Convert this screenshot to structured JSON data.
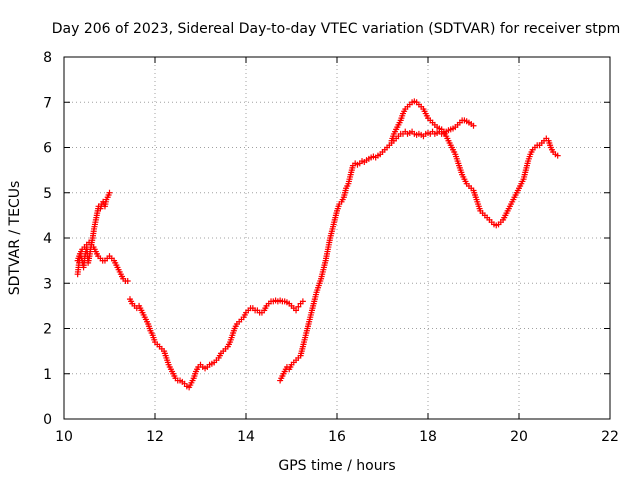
{
  "chart_data": {
    "type": "scatter",
    "title": "Day 206 of 2023, Sidereal Day-to-day VTEC variation (SDTVAR) for receiver stpm",
    "xlabel": "GPS time / hours",
    "ylabel": "SDTVAR / TECUs",
    "xlim": [
      10,
      22
    ],
    "ylim": [
      0,
      8
    ],
    "xticks": [
      "10",
      "12",
      "14",
      "16",
      "18",
      "20",
      "22"
    ],
    "yticks": [
      "0",
      "1",
      "2",
      "3",
      "4",
      "5",
      "6",
      "7",
      "8"
    ],
    "grid": true,
    "marker": "plus",
    "color": "#ff0000",
    "segments": [
      [
        [
          10.3,
          3.2
        ],
        [
          10.33,
          3.45
        ],
        [
          10.36,
          3.65
        ],
        [
          10.4,
          3.5
        ],
        [
          10.43,
          3.35
        ],
        [
          10.46,
          3.6
        ],
        [
          10.5,
          3.8
        ],
        [
          10.53,
          3.45
        ],
        [
          10.56,
          3.6
        ],
        [
          10.6,
          3.85
        ],
        [
          10.63,
          4.0
        ],
        [
          10.66,
          4.2
        ],
        [
          10.7,
          4.4
        ],
        [
          10.73,
          4.55
        ],
        [
          10.76,
          4.7
        ],
        [
          10.8,
          4.65
        ],
        [
          10.83,
          4.75
        ],
        [
          10.86,
          4.8
        ],
        [
          10.9,
          4.7
        ],
        [
          10.93,
          4.85
        ],
        [
          10.96,
          4.9
        ],
        [
          11.0,
          5.0
        ]
      ],
      [
        [
          10.3,
          3.5
        ],
        [
          10.35,
          3.65
        ],
        [
          10.4,
          3.75
        ],
        [
          10.45,
          3.8
        ],
        [
          10.5,
          3.85
        ],
        [
          10.55,
          3.9
        ],
        [
          10.6,
          3.85
        ],
        [
          10.65,
          3.8
        ],
        [
          10.7,
          3.7
        ],
        [
          10.75,
          3.6
        ],
        [
          10.8,
          3.55
        ],
        [
          10.85,
          3.5
        ],
        [
          10.9,
          3.5
        ],
        [
          10.95,
          3.55
        ],
        [
          11.0,
          3.6
        ],
        [
          11.05,
          3.55
        ],
        [
          11.1,
          3.5
        ],
        [
          11.15,
          3.4
        ],
        [
          11.2,
          3.3
        ],
        [
          11.25,
          3.2
        ],
        [
          11.3,
          3.1
        ],
        [
          11.35,
          3.05
        ],
        [
          11.4,
          3.05
        ]
      ],
      [
        [
          11.45,
          2.65
        ],
        [
          11.5,
          2.55
        ],
        [
          11.55,
          2.5
        ],
        [
          11.6,
          2.45
        ],
        [
          11.65,
          2.5
        ],
        [
          11.7,
          2.4
        ],
        [
          11.75,
          2.3
        ],
        [
          11.8,
          2.2
        ],
        [
          11.85,
          2.1
        ],
        [
          11.9,
          1.95
        ],
        [
          11.95,
          1.85
        ],
        [
          12.0,
          1.7
        ],
        [
          12.05,
          1.65
        ],
        [
          12.1,
          1.6
        ],
        [
          12.15,
          1.55
        ],
        [
          12.2,
          1.5
        ],
        [
          12.25,
          1.35
        ],
        [
          12.3,
          1.2
        ],
        [
          12.35,
          1.1
        ],
        [
          12.4,
          1.0
        ],
        [
          12.45,
          0.9
        ],
        [
          12.5,
          0.85
        ],
        [
          12.55,
          0.85
        ],
        [
          12.6,
          0.82
        ],
        [
          12.65,
          0.78
        ],
        [
          12.7,
          0.72
        ],
        [
          12.75,
          0.7
        ],
        [
          12.8,
          0.8
        ],
        [
          12.85,
          0.9
        ],
        [
          12.9,
          1.05
        ],
        [
          12.95,
          1.15
        ],
        [
          13.0,
          1.2
        ],
        [
          13.05,
          1.15
        ],
        [
          13.1,
          1.12
        ],
        [
          13.15,
          1.15
        ],
        [
          13.2,
          1.2
        ],
        [
          13.25,
          1.22
        ],
        [
          13.3,
          1.25
        ],
        [
          13.35,
          1.3
        ],
        [
          13.4,
          1.35
        ],
        [
          13.45,
          1.45
        ],
        [
          13.5,
          1.5
        ],
        [
          13.55,
          1.55
        ],
        [
          13.6,
          1.6
        ],
        [
          13.65,
          1.7
        ],
        [
          13.7,
          1.85
        ],
        [
          13.75,
          2.0
        ],
        [
          13.8,
          2.1
        ],
        [
          13.85,
          2.15
        ],
        [
          13.9,
          2.2
        ],
        [
          13.95,
          2.25
        ],
        [
          14.0,
          2.35
        ],
        [
          14.05,
          2.4
        ],
        [
          14.1,
          2.45
        ],
        [
          14.15,
          2.45
        ],
        [
          14.2,
          2.4
        ],
        [
          14.25,
          2.4
        ],
        [
          14.3,
          2.35
        ],
        [
          14.35,
          2.35
        ],
        [
          14.4,
          2.4
        ],
        [
          14.45,
          2.5
        ],
        [
          14.5,
          2.55
        ],
        [
          14.55,
          2.6
        ],
        [
          14.6,
          2.6
        ],
        [
          14.65,
          2.62
        ],
        [
          14.7,
          2.6
        ],
        [
          14.75,
          2.62
        ],
        [
          14.8,
          2.6
        ],
        [
          14.85,
          2.6
        ],
        [
          14.9,
          2.58
        ],
        [
          14.95,
          2.55
        ],
        [
          15.0,
          2.5
        ],
        [
          15.05,
          2.45
        ],
        [
          15.1,
          2.4
        ],
        [
          15.15,
          2.48
        ],
        [
          15.2,
          2.55
        ],
        [
          15.25,
          2.6
        ]
      ],
      [
        [
          14.75,
          0.85
        ],
        [
          14.8,
          0.95
        ],
        [
          14.85,
          1.05
        ],
        [
          14.9,
          1.15
        ],
        [
          14.95,
          1.1
        ],
        [
          15.0,
          1.2
        ],
        [
          15.05,
          1.25
        ],
        [
          15.1,
          1.3
        ],
        [
          15.15,
          1.35
        ],
        [
          15.2,
          1.4
        ],
        [
          15.25,
          1.6
        ],
        [
          15.3,
          1.8
        ],
        [
          15.35,
          2.0
        ],
        [
          15.4,
          2.2
        ],
        [
          15.45,
          2.4
        ],
        [
          15.5,
          2.6
        ],
        [
          15.55,
          2.8
        ],
        [
          15.6,
          2.95
        ],
        [
          15.65,
          3.1
        ],
        [
          15.7,
          3.3
        ],
        [
          15.75,
          3.5
        ],
        [
          15.8,
          3.75
        ],
        [
          15.85,
          4.0
        ],
        [
          15.9,
          4.2
        ],
        [
          15.95,
          4.4
        ],
        [
          16.0,
          4.6
        ],
        [
          16.05,
          4.75
        ],
        [
          16.1,
          4.8
        ],
        [
          16.15,
          4.9
        ],
        [
          16.2,
          5.1
        ],
        [
          16.25,
          5.2
        ],
        [
          16.3,
          5.4
        ],
        [
          16.35,
          5.6
        ],
        [
          16.4,
          5.65
        ],
        [
          16.45,
          5.62
        ],
        [
          16.5,
          5.65
        ],
        [
          16.55,
          5.7
        ],
        [
          16.6,
          5.68
        ],
        [
          16.65,
          5.72
        ],
        [
          16.7,
          5.75
        ],
        [
          16.75,
          5.78
        ],
        [
          16.8,
          5.8
        ],
        [
          16.85,
          5.78
        ],
        [
          16.9,
          5.82
        ],
        [
          16.95,
          5.85
        ],
        [
          17.0,
          5.9
        ],
        [
          17.05,
          5.95
        ],
        [
          17.1,
          6.0
        ],
        [
          17.15,
          6.05
        ],
        [
          17.2,
          6.1
        ],
        [
          17.25,
          6.15
        ],
        [
          17.3,
          6.2
        ],
        [
          17.35,
          6.25
        ],
        [
          17.4,
          6.3
        ],
        [
          17.45,
          6.3
        ],
        [
          17.5,
          6.35
        ],
        [
          17.55,
          6.3
        ],
        [
          17.6,
          6.32
        ],
        [
          17.65,
          6.35
        ],
        [
          17.7,
          6.3
        ],
        [
          17.75,
          6.28
        ],
        [
          17.8,
          6.3
        ],
        [
          17.85,
          6.28
        ],
        [
          17.9,
          6.25
        ],
        [
          17.95,
          6.3
        ],
        [
          18.0,
          6.32
        ],
        [
          18.05,
          6.3
        ],
        [
          18.1,
          6.35
        ],
        [
          18.15,
          6.3
        ],
        [
          18.2,
          6.32
        ],
        [
          18.25,
          6.35
        ],
        [
          18.3,
          6.3
        ],
        [
          18.35,
          6.32
        ],
        [
          18.4,
          6.35
        ],
        [
          18.45,
          6.38
        ],
        [
          18.5,
          6.4
        ],
        [
          18.55,
          6.42
        ],
        [
          18.6,
          6.45
        ],
        [
          18.65,
          6.5
        ],
        [
          18.7,
          6.55
        ],
        [
          18.75,
          6.6
        ],
        [
          18.8,
          6.6
        ],
        [
          18.85,
          6.58
        ],
        [
          18.9,
          6.55
        ],
        [
          18.95,
          6.52
        ],
        [
          19.0,
          6.48
        ]
      ],
      [
        [
          17.2,
          6.15
        ],
        [
          17.25,
          6.3
        ],
        [
          17.3,
          6.4
        ],
        [
          17.35,
          6.5
        ],
        [
          17.4,
          6.6
        ],
        [
          17.45,
          6.75
        ],
        [
          17.5,
          6.85
        ],
        [
          17.55,
          6.9
        ],
        [
          17.6,
          6.95
        ],
        [
          17.65,
          7.0
        ],
        [
          17.7,
          7.02
        ],
        [
          17.75,
          7.0
        ],
        [
          17.8,
          6.95
        ],
        [
          17.85,
          6.9
        ],
        [
          17.9,
          6.85
        ],
        [
          17.95,
          6.75
        ],
        [
          18.0,
          6.65
        ],
        [
          18.05,
          6.6
        ],
        [
          18.1,
          6.55
        ],
        [
          18.15,
          6.5
        ],
        [
          18.2,
          6.45
        ],
        [
          18.25,
          6.42
        ],
        [
          18.3,
          6.4
        ],
        [
          18.35,
          6.35
        ],
        [
          18.4,
          6.25
        ],
        [
          18.45,
          6.15
        ],
        [
          18.5,
          6.05
        ],
        [
          18.55,
          5.95
        ],
        [
          18.6,
          5.85
        ],
        [
          18.65,
          5.7
        ],
        [
          18.7,
          5.55
        ],
        [
          18.75,
          5.4
        ],
        [
          18.8,
          5.3
        ],
        [
          18.85,
          5.2
        ],
        [
          18.9,
          5.15
        ],
        [
          18.95,
          5.1
        ],
        [
          19.0,
          5.05
        ],
        [
          19.05,
          4.9
        ],
        [
          19.1,
          4.75
        ],
        [
          19.15,
          4.6
        ],
        [
          19.2,
          4.55
        ],
        [
          19.25,
          4.5
        ],
        [
          19.3,
          4.45
        ],
        [
          19.35,
          4.4
        ],
        [
          19.4,
          4.35
        ],
        [
          19.45,
          4.3
        ],
        [
          19.5,
          4.28
        ],
        [
          19.55,
          4.3
        ],
        [
          19.6,
          4.35
        ],
        [
          19.65,
          4.4
        ],
        [
          19.7,
          4.5
        ],
        [
          19.75,
          4.6
        ],
        [
          19.8,
          4.7
        ],
        [
          19.85,
          4.8
        ],
        [
          19.9,
          4.9
        ],
        [
          19.95,
          5.0
        ],
        [
          20.0,
          5.1
        ],
        [
          20.05,
          5.2
        ],
        [
          20.1,
          5.3
        ],
        [
          20.15,
          5.5
        ],
        [
          20.2,
          5.7
        ],
        [
          20.25,
          5.85
        ],
        [
          20.3,
          5.95
        ],
        [
          20.35,
          6.0
        ],
        [
          20.4,
          6.05
        ],
        [
          20.45,
          6.05
        ],
        [
          20.5,
          6.1
        ],
        [
          20.55,
          6.15
        ],
        [
          20.6,
          6.2
        ],
        [
          20.65,
          6.15
        ],
        [
          20.7,
          6.0
        ],
        [
          20.75,
          5.9
        ],
        [
          20.8,
          5.85
        ],
        [
          20.85,
          5.82
        ]
      ]
    ]
  }
}
